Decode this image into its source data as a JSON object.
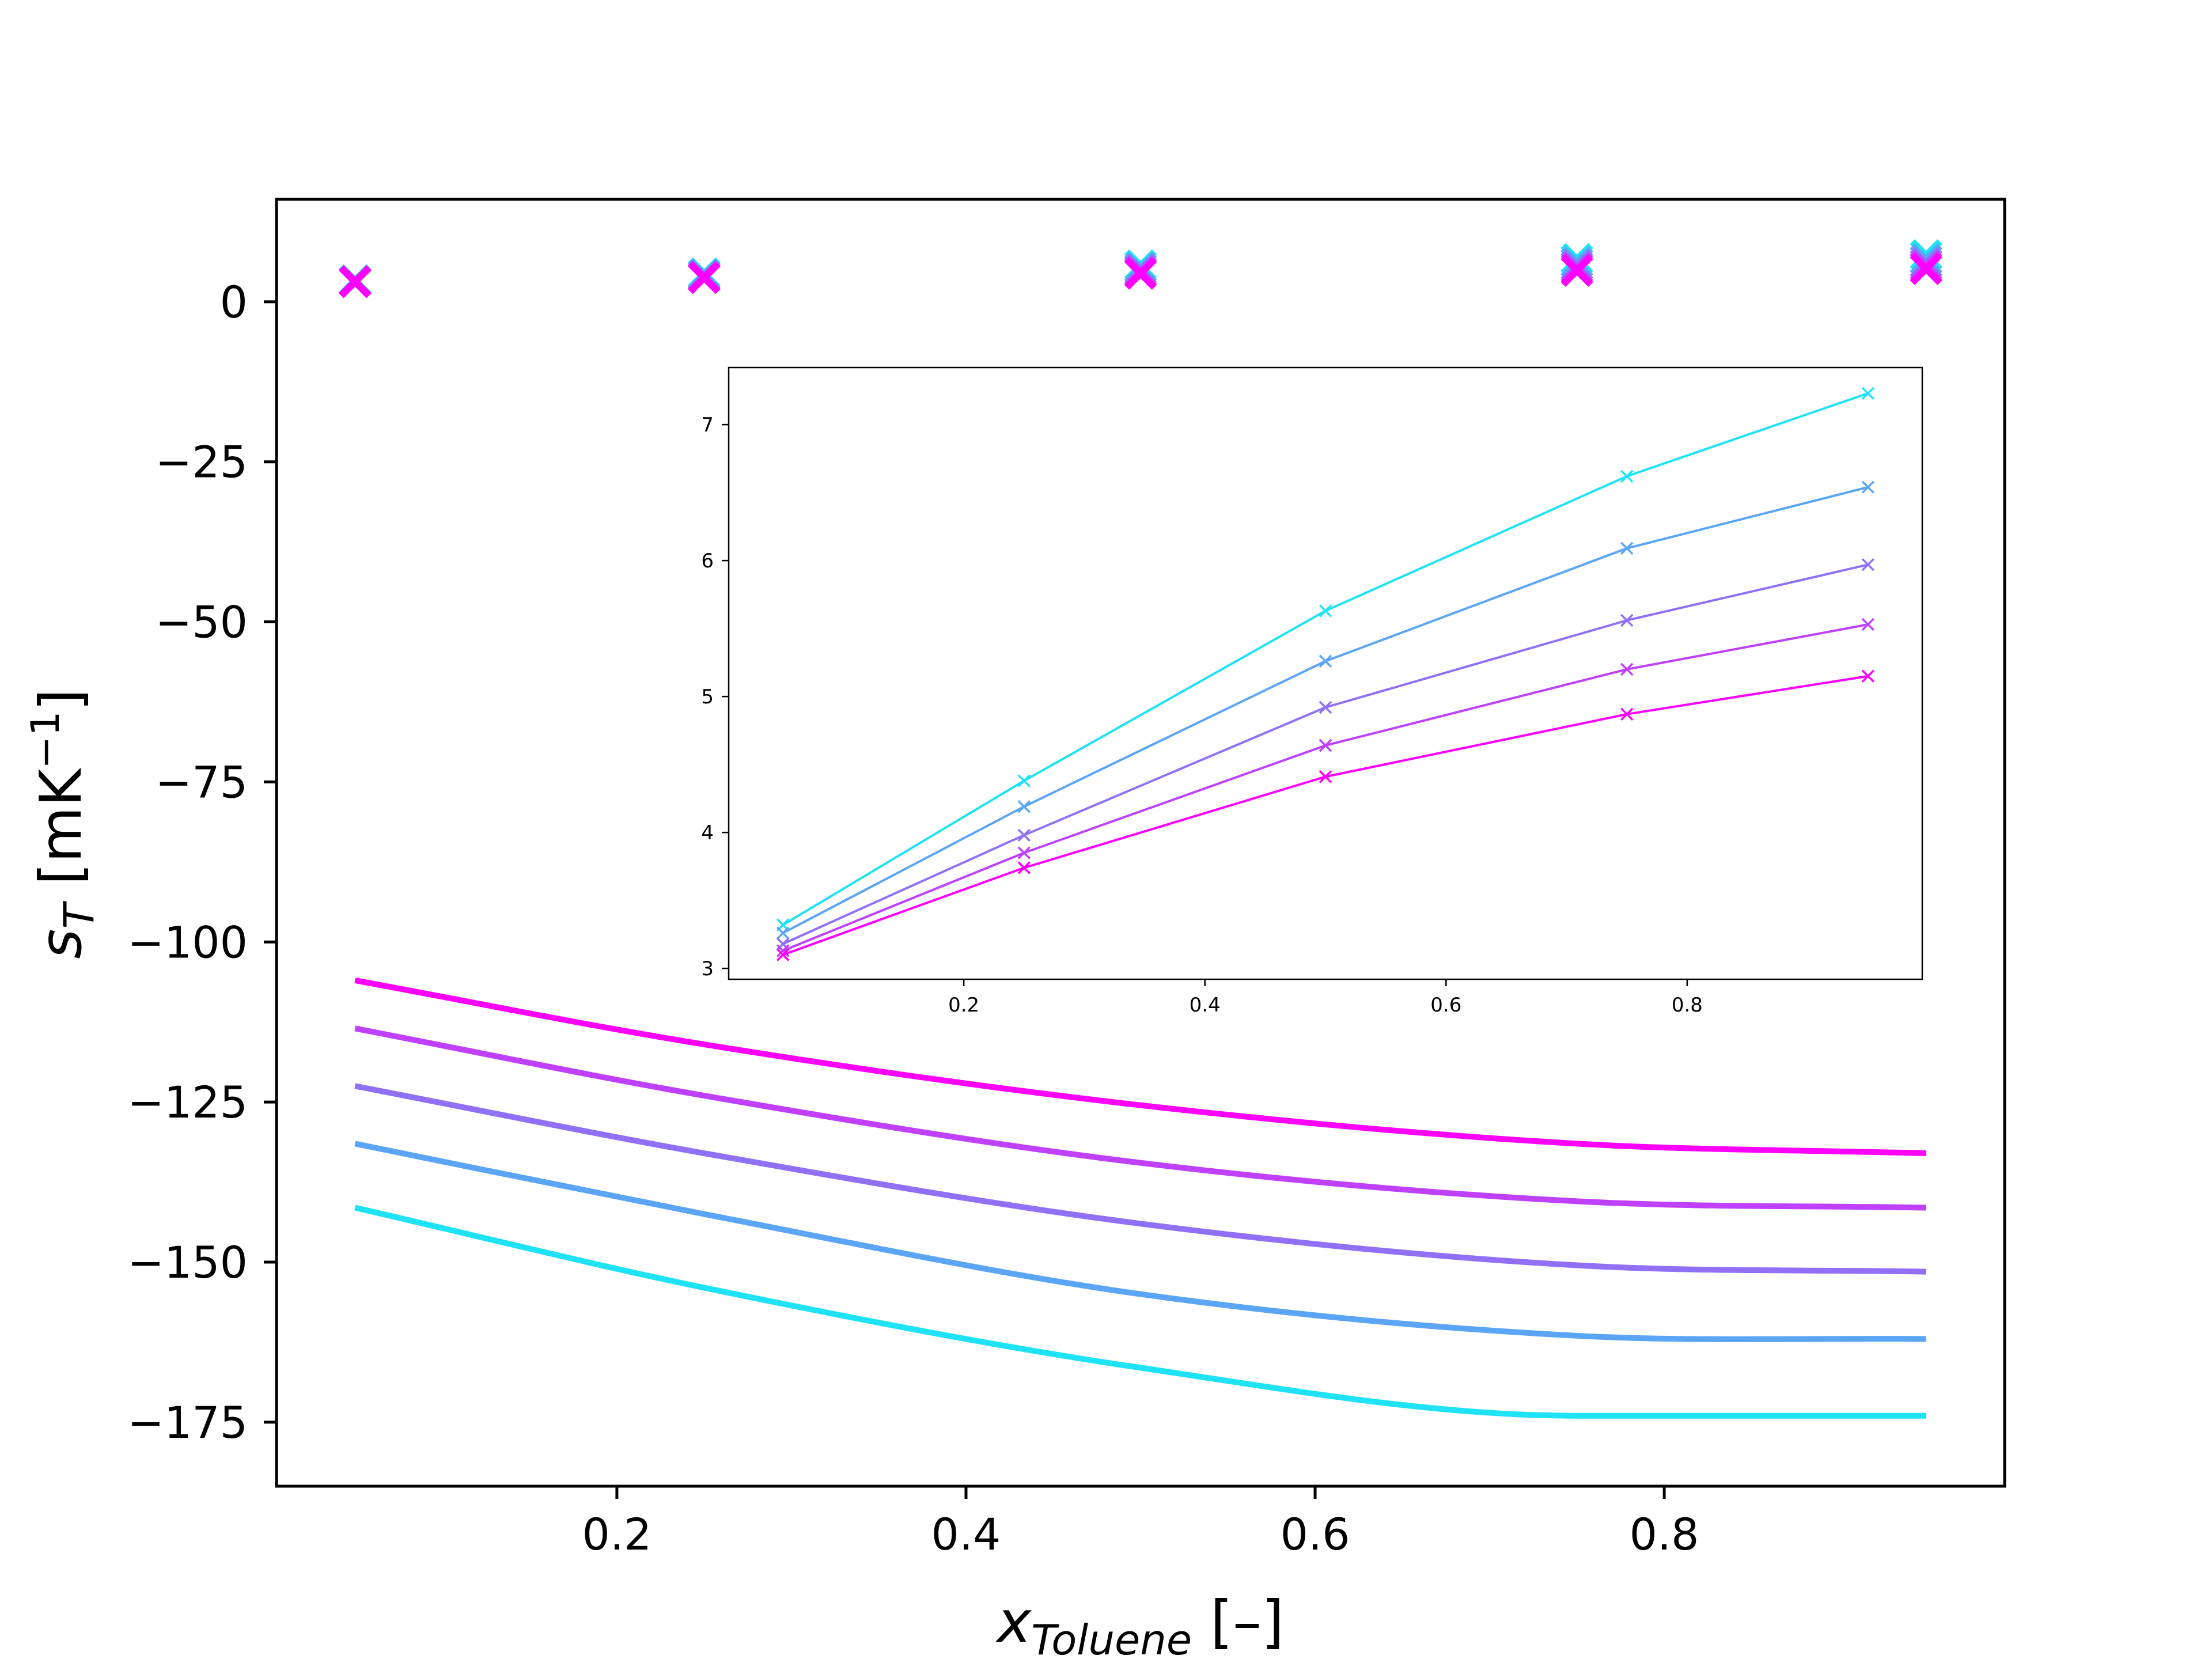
{
  "chart_data": [
    {
      "type": "line",
      "panel": "main",
      "xlabel": {
        "base": "x",
        "sub": "Toluene",
        "unit": " [–]"
      },
      "ylabel": {
        "base": "s",
        "sub": "T",
        "unit_prefix": " [mK",
        "unit_sup": "−1",
        "unit_suffix": "]"
      },
      "xlim": [
        0.005,
        0.995
      ],
      "ylim": [
        -185,
        16
      ],
      "xticks": [
        0.2,
        0.4,
        0.6,
        0.8
      ],
      "xtick_labels": [
        "0.2",
        "0.4",
        "0.6",
        "0.8"
      ],
      "yticks": [
        0,
        -25,
        -50,
        -75,
        -100,
        -125,
        -150,
        -175
      ],
      "ytick_labels": [
        "0",
        "−25",
        "−50",
        "−75",
        "−100",
        "−125",
        "−150",
        "−175"
      ],
      "grid": false,
      "line_series": [
        {
          "color": "#ff00ff",
          "x": [
            0.05,
            0.25,
            0.5,
            0.75,
            0.95
          ],
          "y": [
            -106,
            -116,
            -125.5,
            -131.5,
            -133
          ]
        },
        {
          "color": "#bf40ff",
          "x": [
            0.05,
            0.25,
            0.5,
            0.75,
            0.95
          ],
          "y": [
            -113.5,
            -124,
            -134.5,
            -140.5,
            -141.5
          ]
        },
        {
          "color": "#8f70f7",
          "x": [
            0.05,
            0.25,
            0.5,
            0.75,
            0.95
          ],
          "y": [
            -122.5,
            -133,
            -144,
            -150.5,
            -151.5
          ]
        },
        {
          "color": "#5aa5f5",
          "x": [
            0.05,
            0.25,
            0.5,
            0.75,
            0.95
          ],
          "y": [
            -131.5,
            -142.5,
            -155,
            -161.5,
            -162
          ]
        },
        {
          "color": "#1ee2f5",
          "x": [
            0.05,
            0.25,
            0.5,
            0.75,
            0.95
          ],
          "y": [
            -141.5,
            -154,
            -166.5,
            -174,
            -174
          ]
        }
      ],
      "marker_series": [
        {
          "color": "#1ee2f5",
          "marker": "x",
          "x": [
            0.05,
            0.25,
            0.5,
            0.75,
            0.95
          ],
          "y": [
            3.32,
            4.38,
            5.63,
            6.62,
            7.23
          ]
        },
        {
          "color": "#5aa5f5",
          "marker": "x",
          "x": [
            0.05,
            0.25,
            0.5,
            0.75,
            0.95
          ],
          "y": [
            3.26,
            4.19,
            5.26,
            6.09,
            6.54
          ]
        },
        {
          "color": "#8f70f7",
          "marker": "x",
          "x": [
            0.05,
            0.25,
            0.5,
            0.75,
            0.95
          ],
          "y": [
            3.18,
            3.98,
            4.92,
            5.56,
            5.97
          ]
        },
        {
          "color": "#bf40ff",
          "marker": "x",
          "x": [
            0.05,
            0.25,
            0.5,
            0.75,
            0.95
          ],
          "y": [
            3.13,
            3.85,
            4.64,
            5.2,
            5.53
          ]
        },
        {
          "color": "#ff00ff",
          "marker": "x",
          "x": [
            0.05,
            0.25,
            0.5,
            0.75,
            0.95
          ],
          "y": [
            3.1,
            3.74,
            4.41,
            4.87,
            5.15
          ]
        }
      ]
    },
    {
      "type": "line",
      "panel": "inset",
      "xlim": [
        0.005,
        0.995
      ],
      "ylim": [
        2.92,
        7.42
      ],
      "xticks": [
        0.2,
        0.4,
        0.6,
        0.8
      ],
      "xtick_labels": [
        "0.2",
        "0.4",
        "0.6",
        "0.8"
      ],
      "yticks": [
        3,
        4,
        5,
        6,
        7
      ],
      "ytick_labels": [
        "3",
        "4",
        "5",
        "6",
        "7"
      ],
      "grid": false,
      "series": [
        {
          "color": "#1ee2f5",
          "marker": "x",
          "x": [
            0.05,
            0.25,
            0.5,
            0.75,
            0.95
          ],
          "y": [
            3.32,
            4.38,
            5.63,
            6.62,
            7.23
          ]
        },
        {
          "color": "#5aa5f5",
          "marker": "x",
          "x": [
            0.05,
            0.25,
            0.5,
            0.75,
            0.95
          ],
          "y": [
            3.26,
            4.19,
            5.26,
            6.09,
            6.54
          ]
        },
        {
          "color": "#8f70f7",
          "marker": "x",
          "x": [
            0.05,
            0.25,
            0.5,
            0.75,
            0.95
          ],
          "y": [
            3.18,
            3.98,
            4.92,
            5.56,
            5.97
          ]
        },
        {
          "color": "#bf40ff",
          "marker": "x",
          "x": [
            0.05,
            0.25,
            0.5,
            0.75,
            0.95
          ],
          "y": [
            3.13,
            3.85,
            4.64,
            5.2,
            5.53
          ]
        },
        {
          "color": "#ff00ff",
          "marker": "x",
          "x": [
            0.05,
            0.25,
            0.5,
            0.75,
            0.95
          ],
          "y": [
            3.1,
            3.74,
            4.41,
            4.87,
            5.15
          ]
        }
      ]
    }
  ]
}
